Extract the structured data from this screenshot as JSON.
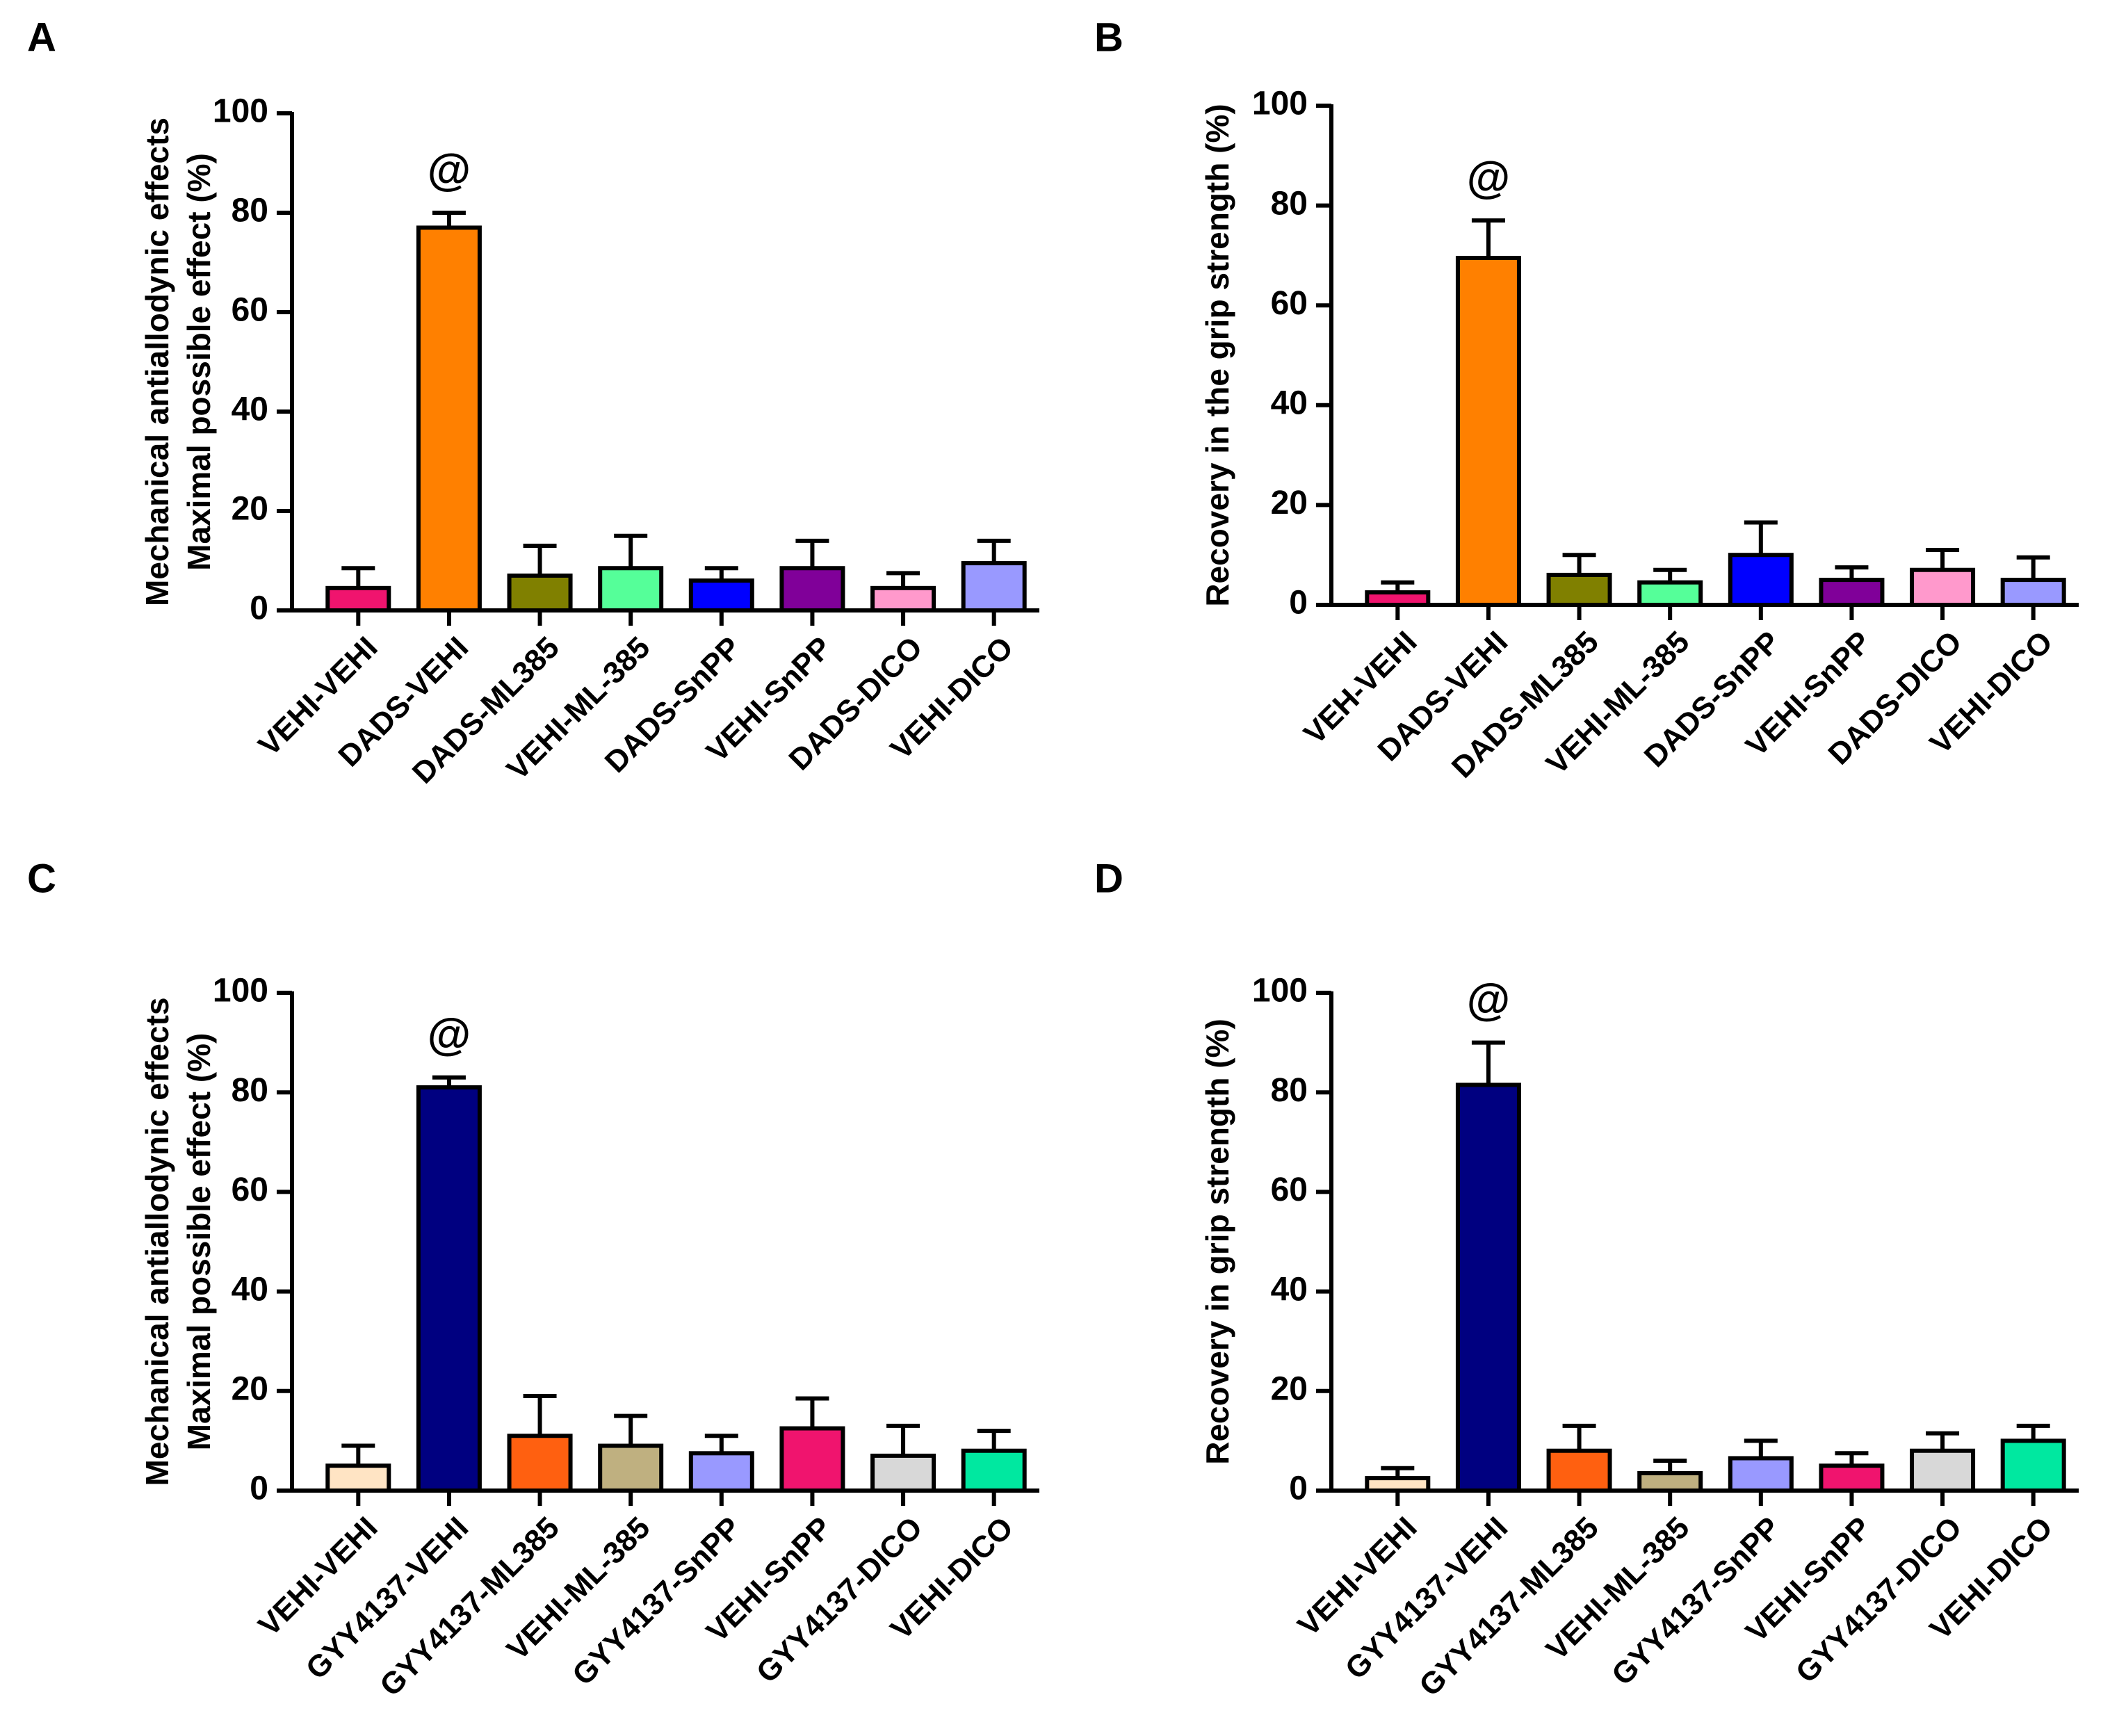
{
  "chart_data": [
    {
      "type": "bar",
      "panel_label": "A",
      "ylabel_lines": [
        "Mechanical antiallodynic effects",
        "Maximal possible effect (%)"
      ],
      "ylim": [
        0,
        100
      ],
      "yticks": [
        0,
        20,
        40,
        60,
        80,
        100
      ],
      "categories": [
        "VEHI-VEHI",
        "DADS-VEHI",
        "DADS-ML385",
        "VEHI-ML-385",
        "DADS-SnPP",
        "VEHI-SnPP",
        "DADS-DICO",
        "VEHI-DICO"
      ],
      "values": [
        4.5,
        77,
        7,
        8.5,
        6,
        8.5,
        4.5,
        9.5
      ],
      "errors": [
        4,
        3,
        6,
        6.5,
        2.5,
        5.5,
        3,
        4.5
      ],
      "colors": [
        "#f0146e",
        "#ff8000",
        "#808000",
        "#55ff99",
        "#0000ff",
        "#800099",
        "#ff99cc",
        "#9999ff"
      ],
      "annotations": [
        {
          "index": 1,
          "text": "@"
        }
      ]
    },
    {
      "type": "bar",
      "panel_label": "B",
      "ylabel_lines": [
        "Recovery in the grip strength (%)"
      ],
      "ylim": [
        0,
        100
      ],
      "yticks": [
        0,
        20,
        40,
        60,
        80,
        100
      ],
      "categories": [
        "VEH-VEHI",
        "DADS-VEHI",
        "DADS-ML385",
        "VEHI-ML-385",
        "DADS-SnPP",
        "VEHI-SnPP",
        "DADS-DICO",
        "VEHI-DICO"
      ],
      "values": [
        2.5,
        69.5,
        6,
        4.5,
        10,
        5,
        7,
        5
      ],
      "errors": [
        2,
        7.5,
        4,
        2.5,
        6.5,
        2.5,
        4,
        4.5
      ],
      "colors": [
        "#f0146e",
        "#ff8000",
        "#808000",
        "#55ff99",
        "#0000ff",
        "#800099",
        "#ff99cc",
        "#9999ff"
      ],
      "annotations": [
        {
          "index": 1,
          "text": "@"
        }
      ]
    },
    {
      "type": "bar",
      "panel_label": "C",
      "ylabel_lines": [
        "Mechanical antiallodynic effects",
        "Maximal possible effect (%)"
      ],
      "ylim": [
        0,
        100
      ],
      "yticks": [
        0,
        20,
        40,
        60,
        80,
        100
      ],
      "categories": [
        "VEHI-VEHI",
        "GYY4137-VEHI",
        "GYY4137-ML385",
        "VEHI-ML-385",
        "GYY4137-SnPP",
        "VEHI-SnPP",
        "GYY4137-DICO",
        "VEHI-DICO"
      ],
      "values": [
        5,
        81,
        11,
        9,
        7.5,
        12.5,
        7,
        8
      ],
      "errors": [
        4,
        2,
        8,
        6,
        3.5,
        6,
        6,
        4
      ],
      "colors": [
        "#ffe4c4",
        "#000080",
        "#ff6010",
        "#bfb080",
        "#9999ff",
        "#f0146e",
        "#d8d8d8",
        "#00e8a0"
      ],
      "annotations": [
        {
          "index": 1,
          "text": "@"
        }
      ]
    },
    {
      "type": "bar",
      "panel_label": "D",
      "ylabel_lines": [
        "Recovery in grip strength (%)"
      ],
      "ylim": [
        0,
        100
      ],
      "yticks": [
        0,
        20,
        40,
        60,
        80,
        100
      ],
      "categories": [
        "VEHI-VEHI",
        "GYY4137-VEHI",
        "GYY4137-ML385",
        "VEHI-ML-385",
        "GYY4137-SnPP",
        "VEHI-SnPP",
        "GYY4137-DICO",
        "VEHI-DICO"
      ],
      "values": [
        2.5,
        81.5,
        8,
        3.5,
        6.5,
        5,
        8,
        10
      ],
      "errors": [
        2,
        8.5,
        5,
        2.5,
        3.5,
        2.5,
        3.5,
        3
      ],
      "colors": [
        "#ffe4c4",
        "#000080",
        "#ff6010",
        "#bfb080",
        "#9999ff",
        "#f0146e",
        "#d8d8d8",
        "#00e8a0"
      ],
      "annotations": [
        {
          "index": 1,
          "text": "@"
        }
      ]
    }
  ]
}
